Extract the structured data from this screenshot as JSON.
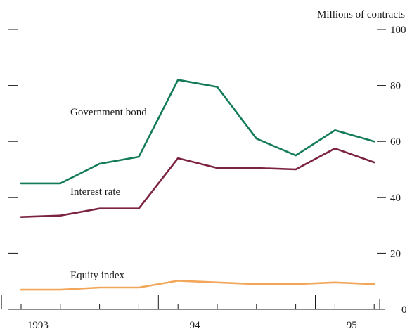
{
  "chart_data": {
    "type": "line",
    "ylabel": "Millions of contracts",
    "ylim": [
      0,
      100
    ],
    "yticks": [
      0,
      20,
      40,
      60,
      80,
      100
    ],
    "x": [
      "1993 Q1",
      "1993 Q2",
      "1993 Q3",
      "1993 Q4",
      "1994 Q1",
      "1994 Q2",
      "1994 Q3",
      "1994 Q4",
      "1995 Q1",
      "1995 Q2"
    ],
    "xtick_labels": [
      {
        "label": "1993",
        "after_index": 0
      },
      {
        "label": "94",
        "after_index": 4
      },
      {
        "label": "95",
        "after_index": 8
      }
    ],
    "year_boundaries_after_index": [
      -1,
      3,
      7
    ],
    "series": [
      {
        "name": "Government bond",
        "color": "#137b58",
        "values": [
          45,
          45,
          52,
          54.5,
          82,
          79.5,
          61,
          55,
          64,
          60
        ]
      },
      {
        "name": "Interest rate",
        "color": "#7d2342",
        "values": [
          33,
          33.5,
          36,
          36,
          54,
          50.5,
          50.5,
          50,
          57.5,
          52.5
        ]
      },
      {
        "name": "Equity index",
        "color": "#f2a65a",
        "values": [
          7,
          7,
          7.8,
          7.8,
          10.2,
          9.6,
          9,
          9,
          9.6,
          9
        ]
      }
    ]
  }
}
